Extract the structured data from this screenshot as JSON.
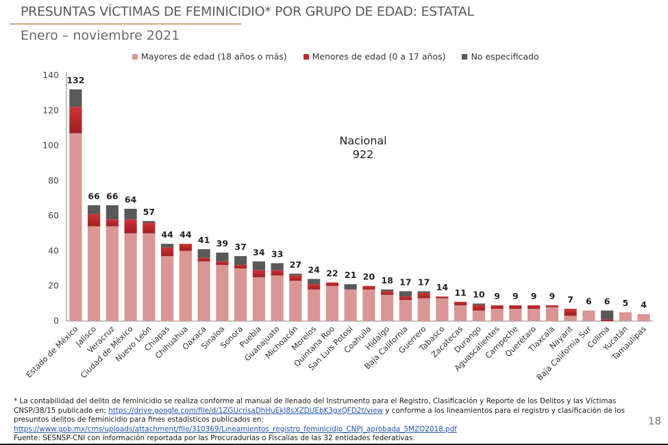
{
  "header": {
    "title": "PRESUNTAS VÍCTIMAS DE FEMINICIDIO* POR GRUPO DE EDAD: ESTATAL",
    "subtitle": "Enero – noviembre 2021"
  },
  "page_number": "18",
  "annotation": {
    "line1": "Nacional",
    "line2": "922"
  },
  "footnote": {
    "part1": "* La contabilidad del delito de feminicidio se realiza conforme al manual de llenado del Instrumento para el Registro, Clasificación y Reporte de los Delitos y las Víctimas CNSP/38/15 publicado en: ",
    "link1": "https://drive.google.com/file/d/1ZGUcrisaDhHuEkJ8sXZDUEbK3gxQFD2t/view",
    "part2": " y conforme a los lineamientos para el registro y clasificación de los presuntos delitos de feminicidio para fines estadísticos publicados en: ",
    "link2": "https://www.gob.mx/cms/uploads/attachment/file/310369/Lineamientos_registro_feminicidio_CNPJ_aprobada_5MZO2018.pdf",
    "source": "Fuente: SESNSP-CNI con información reportada por las Procuradurías o Fiscalías de las 32 entidades federativas."
  },
  "chart_data": {
    "type": "bar",
    "stacked": true,
    "title": "PRESUNTAS VÍCTIMAS DE FEMINICIDIO* POR GRUPO DE EDAD: ESTATAL",
    "subtitle": "Enero – noviembre 2021",
    "xlabel": "",
    "ylabel": "",
    "ylim": [
      0,
      140
    ],
    "yticks": [
      0,
      20,
      40,
      60,
      80,
      100,
      120,
      140
    ],
    "grid": false,
    "legend_position": "top",
    "categories": [
      "Estado de México",
      "Jalisco",
      "Veracruz",
      "Ciudad de México",
      "Nuevo León",
      "Chiapas",
      "Chihuahua",
      "Oaxaca",
      "Sinaloa",
      "Sonora",
      "Puebla",
      "Guanajuato",
      "Michoacán",
      "Morelos",
      "Quintana Roo",
      "San Luis Potosí",
      "Coahuila",
      "Hidalgo",
      "Baja California",
      "Guerrero",
      "Tabasco",
      "Zacatecas",
      "Durango",
      "Aguascalientes",
      "Campeche",
      "Querétaro",
      "Tlaxcala",
      "Nayarit",
      "Baja California Sur",
      "Colima",
      "Yucatán",
      "Tamaulipas"
    ],
    "series": [
      {
        "name": "Mayores de edad (18 años o más)",
        "color": "#d99694",
        "values": [
          107,
          54,
          54,
          50,
          50,
          37,
          40,
          34,
          32,
          30,
          25,
          26,
          23,
          18,
          20,
          18,
          18,
          15,
          12,
          13,
          13,
          9,
          6,
          7,
          7,
          7,
          8,
          3,
          6,
          0,
          5,
          4
        ]
      },
      {
        "name": "Menores de edad (0 a 17 años)",
        "color": "#c0282b",
        "values": [
          15,
          7,
          4,
          8,
          6,
          5,
          4,
          2,
          2,
          2,
          4,
          3,
          3,
          3,
          2,
          0,
          2,
          2,
          2,
          3,
          1,
          2,
          3,
          2,
          2,
          2,
          1,
          4,
          0,
          1,
          0,
          0
        ]
      },
      {
        "name": "No especificado",
        "color": "#595959",
        "values": [
          10,
          5,
          8,
          6,
          1,
          2,
          0,
          5,
          5,
          5,
          5,
          4,
          1,
          3,
          0,
          3,
          0,
          1,
          3,
          1,
          0,
          0,
          1,
          0,
          0,
          0,
          0,
          0,
          0,
          5,
          0,
          0
        ]
      }
    ],
    "totals": [
      132,
      66,
      66,
      64,
      57,
      44,
      44,
      41,
      39,
      37,
      34,
      33,
      27,
      24,
      22,
      21,
      20,
      18,
      17,
      17,
      14,
      11,
      10,
      9,
      9,
      9,
      9,
      7,
      6,
      6,
      5,
      4
    ],
    "annotations": [
      "Nacional 922"
    ]
  }
}
